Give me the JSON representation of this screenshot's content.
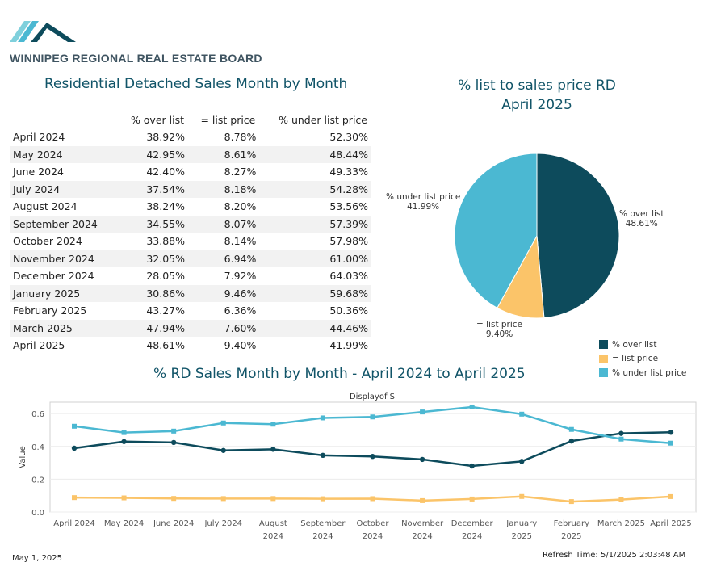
{
  "header": {
    "org_name": "WINNIPEG REGIONAL REAL ESTATE BOARD"
  },
  "colors": {
    "over_list": "#0d4b5c",
    "at_list": "#fbc469",
    "under_list": "#4bb8d2"
  },
  "table": {
    "title": "Residential Detached Sales Month by Month",
    "columns": [
      "",
      "% over list",
      "= list price",
      "% under list price"
    ],
    "rows": [
      [
        "April 2024",
        "38.92%",
        "8.78%",
        "52.30%"
      ],
      [
        "May 2024",
        "42.95%",
        "8.61%",
        "48.44%"
      ],
      [
        "June 2024",
        "42.40%",
        "8.27%",
        "49.33%"
      ],
      [
        "July 2024",
        "37.54%",
        "8.18%",
        "54.28%"
      ],
      [
        "August 2024",
        "38.24%",
        "8.20%",
        "53.56%"
      ],
      [
        "September 2024",
        "34.55%",
        "8.07%",
        "57.39%"
      ],
      [
        "October 2024",
        "33.88%",
        "8.14%",
        "57.98%"
      ],
      [
        "November 2024",
        "32.05%",
        "6.94%",
        "61.00%"
      ],
      [
        "December 2024",
        "28.05%",
        "7.92%",
        "64.03%"
      ],
      [
        "January 2025",
        "30.86%",
        "9.46%",
        "59.68%"
      ],
      [
        "February 2025",
        "43.27%",
        "6.36%",
        "50.36%"
      ],
      [
        "March 2025",
        "47.94%",
        "7.60%",
        "44.46%"
      ],
      [
        "April 2025",
        "48.61%",
        "9.40%",
        "41.99%"
      ]
    ]
  },
  "chart_data": [
    {
      "type": "pie",
      "title": "% list to sales price RD",
      "subtitle": "April 2025",
      "slices": [
        {
          "label": "% over list",
          "value": 48.61,
          "display": "48.61%"
        },
        {
          "label": "= list price",
          "value": 9.4,
          "display": "9.40%"
        },
        {
          "label": "% under list price",
          "value": 41.99,
          "display": "41.99%"
        }
      ],
      "legend": [
        "% over list",
        "= list price",
        "% under list price"
      ],
      "legend_position": "bottom-right"
    },
    {
      "type": "line",
      "title": "% RD Sales Month by Month - April 2024 to April 2025",
      "subtitle": "Displayof S",
      "ylabel": "Value",
      "ylim": [
        0,
        0.65
      ],
      "yticks": [
        "0.0",
        "0.2",
        "0.4",
        "0.6"
      ],
      "categories": [
        [
          "April 2024"
        ],
        [
          "May 2024"
        ],
        [
          "June 2024"
        ],
        [
          "July 2024"
        ],
        [
          "August",
          "2024"
        ],
        [
          "September",
          "2024"
        ],
        [
          "October",
          "2024"
        ],
        [
          "November",
          "2024"
        ],
        [
          "December",
          "2024"
        ],
        [
          "January",
          "2025"
        ],
        [
          "February",
          "2025"
        ],
        [
          "March 2025"
        ],
        [
          "April 2025"
        ]
      ],
      "series": [
        {
          "name": "% over list",
          "values": [
            0.3892,
            0.4295,
            0.424,
            0.3754,
            0.3824,
            0.3455,
            0.3388,
            0.3205,
            0.2805,
            0.3086,
            0.4327,
            0.4794,
            0.4861
          ]
        },
        {
          "name": "= list price",
          "values": [
            0.0878,
            0.0861,
            0.0827,
            0.0818,
            0.082,
            0.0807,
            0.0814,
            0.0694,
            0.0792,
            0.0946,
            0.0636,
            0.076,
            0.094
          ]
        },
        {
          "name": "% under list price",
          "values": [
            0.523,
            0.4844,
            0.4933,
            0.5428,
            0.5356,
            0.5739,
            0.5798,
            0.61,
            0.6403,
            0.5968,
            0.5036,
            0.4446,
            0.4199
          ]
        }
      ],
      "grid": true
    }
  ],
  "footer": {
    "date": "May 1, 2025",
    "refresh": "Refresh Time: 5/1/2025 2:03:48 AM"
  }
}
